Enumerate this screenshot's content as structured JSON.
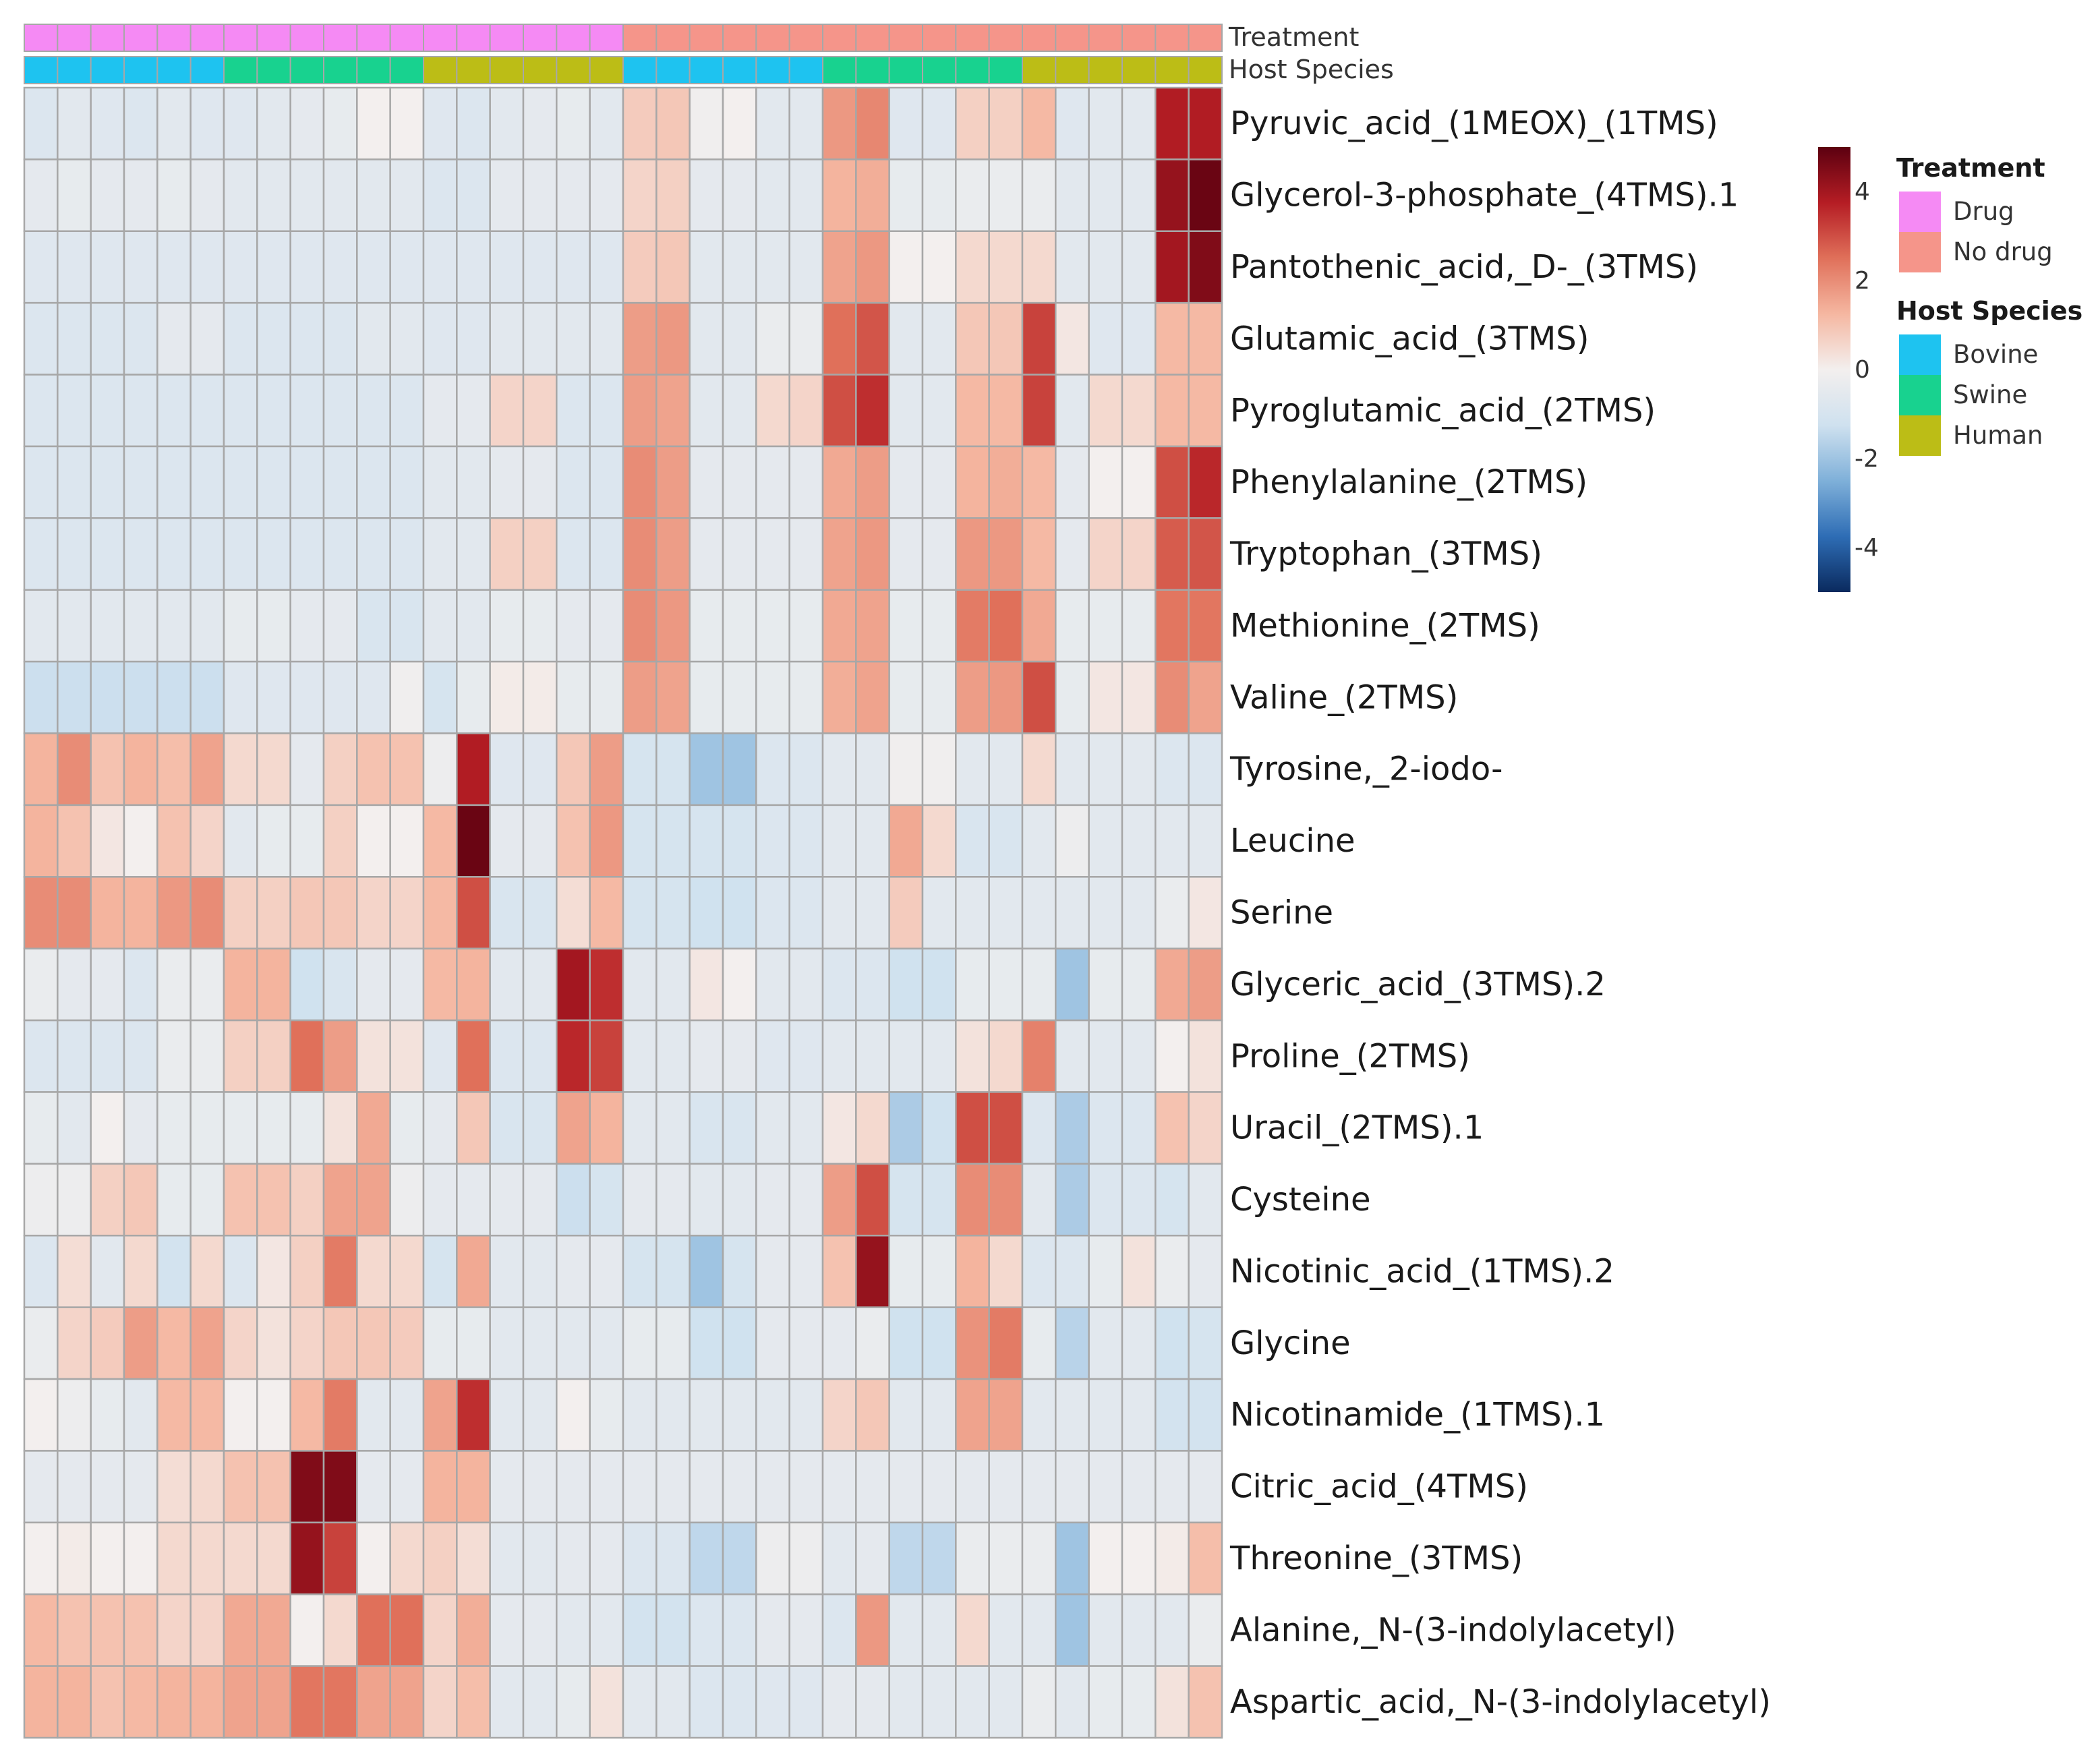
{
  "chart_data": {
    "type": "heatmap",
    "annotation_rows": [
      {
        "name": "Treatment",
        "values": [
          "Drug",
          "Drug",
          "Drug",
          "Drug",
          "Drug",
          "Drug",
          "Drug",
          "Drug",
          "Drug",
          "Drug",
          "Drug",
          "Drug",
          "Drug",
          "Drug",
          "Drug",
          "Drug",
          "Drug",
          "Drug",
          "No drug",
          "No drug",
          "No drug",
          "No drug",
          "No drug",
          "No drug",
          "No drug",
          "No drug",
          "No drug",
          "No drug",
          "No drug",
          "No drug",
          "No drug",
          "No drug",
          "No drug",
          "No drug",
          "No drug",
          "No drug"
        ]
      },
      {
        "name": "Host Species",
        "values": [
          "Bovine",
          "Bovine",
          "Bovine",
          "Bovine",
          "Bovine",
          "Bovine",
          "Swine",
          "Swine",
          "Swine",
          "Swine",
          "Swine",
          "Swine",
          "Human",
          "Human",
          "Human",
          "Human",
          "Human",
          "Human",
          "Bovine",
          "Bovine",
          "Bovine",
          "Bovine",
          "Bovine",
          "Bovine",
          "Swine",
          "Swine",
          "Swine",
          "Swine",
          "Swine",
          "Swine",
          "Human",
          "Human",
          "Human",
          "Human",
          "Human",
          "Human"
        ]
      }
    ],
    "rows": [
      "Pyruvic_acid_(1MEOX)_(1TMS)",
      "Glycerol-3-phosphate_(4TMS).1",
      "Pantothenic_acid,_D-_(3TMS)",
      "Glutamic_acid_(3TMS)",
      "Pyroglutamic_acid_(2TMS)",
      "Phenylalanine_(2TMS)",
      "Tryptophan_(3TMS)",
      "Methionine_(2TMS)",
      "Valine_(2TMS)",
      "Tyrosine,_2-iodo-",
      "Leucine",
      "Serine",
      "Glyceric_acid_(3TMS).2",
      "Proline_(2TMS)",
      "Uracil_(2TMS).1",
      "Cysteine",
      "Nicotinic_acid_(1TMS).2",
      "Glycine",
      "Nicotinamide_(1TMS).1",
      "Citric_acid_(4TMS)",
      "Threonine_(3TMS)",
      "Alanine,_N-(3-indolylacetyl)",
      "Aspartic_acid,_N-(3-indolylacetyl)"
    ],
    "values": [
      [
        -0.8,
        -0.6,
        -0.7,
        -0.8,
        -0.6,
        -0.7,
        -0.7,
        -0.6,
        -0.5,
        -0.4,
        0,
        0,
        -0.7,
        -0.8,
        -0.6,
        -0.5,
        -0.4,
        -0.6,
        0.8,
        0.9,
        -0.1,
        0,
        -0.6,
        -0.6,
        1.8,
        2.1,
        -0.7,
        -0.7,
        0.7,
        0.7,
        1.2,
        -0.7,
        -0.6,
        -0.6,
        3.8,
        3.8
      ],
      [
        -0.5,
        -0.4,
        -0.5,
        -0.5,
        -0.4,
        -0.5,
        -0.6,
        -0.6,
        -0.6,
        -0.6,
        -0.6,
        -0.6,
        -0.8,
        -0.8,
        -0.5,
        -0.5,
        -0.5,
        -0.5,
        0.6,
        0.7,
        -0.5,
        -0.5,
        -0.6,
        -0.6,
        1.3,
        1.4,
        -0.4,
        -0.4,
        -0.3,
        -0.3,
        -0.3,
        -0.6,
        -0.6,
        -0.6,
        4.2,
        4.8
      ],
      [
        -0.7,
        -0.7,
        -0.7,
        -0.7,
        -0.7,
        -0.7,
        -0.7,
        -0.7,
        -0.7,
        -0.7,
        -0.7,
        -0.7,
        -0.7,
        -0.7,
        -0.7,
        -0.7,
        -0.7,
        -0.7,
        0.8,
        0.9,
        -0.6,
        -0.6,
        -0.6,
        -0.6,
        1.6,
        1.8,
        0,
        0,
        0.5,
        0.5,
        0.5,
        -0.6,
        -0.6,
        -0.6,
        4,
        4.5
      ],
      [
        -0.8,
        -0.8,
        -0.8,
        -0.8,
        -0.5,
        -0.5,
        -0.8,
        -0.8,
        -0.8,
        -0.8,
        -0.6,
        -0.6,
        -0.7,
        -0.7,
        -0.6,
        -0.6,
        -0.6,
        -0.6,
        1.7,
        1.8,
        -0.6,
        -0.6,
        -0.3,
        -0.3,
        2.5,
        2.9,
        -0.6,
        -0.6,
        0.9,
        0.9,
        3.2,
        0.2,
        -0.7,
        -0.7,
        1.2,
        1.2
      ],
      [
        -0.8,
        -0.8,
        -0.8,
        -0.8,
        -0.8,
        -0.8,
        -0.8,
        -0.8,
        -0.8,
        -0.8,
        -0.8,
        -0.8,
        -0.5,
        -0.5,
        0.6,
        0.6,
        -0.8,
        -0.8,
        1.7,
        1.6,
        -0.6,
        -0.6,
        0.5,
        0.6,
        3,
        3.5,
        -0.6,
        -0.6,
        1.2,
        1.2,
        3.2,
        -0.6,
        0.5,
        0.5,
        1.2,
        1.2
      ],
      [
        -0.8,
        -0.8,
        -0.8,
        -0.8,
        -0.8,
        -0.8,
        -0.8,
        -0.8,
        -0.8,
        -0.8,
        -0.8,
        -0.8,
        -0.6,
        -0.6,
        -0.5,
        -0.5,
        -0.8,
        -0.8,
        2,
        1.7,
        -0.5,
        -0.5,
        -0.5,
        -0.5,
        1.5,
        1.7,
        -0.5,
        -0.5,
        1.3,
        1.4,
        1.2,
        -0.5,
        0,
        0,
        3,
        3.6
      ],
      [
        -0.8,
        -0.8,
        -0.8,
        -0.8,
        -0.8,
        -0.8,
        -0.8,
        -0.8,
        -0.8,
        -0.8,
        -0.8,
        -0.8,
        -0.6,
        -0.6,
        0.7,
        0.7,
        -0.8,
        -0.8,
        2,
        1.7,
        -0.5,
        -0.5,
        -0.5,
        -0.5,
        1.6,
        1.8,
        -0.5,
        -0.5,
        1.8,
        1.8,
        1.2,
        -0.5,
        0.6,
        0.6,
        2.8,
        2.9
      ],
      [
        -0.6,
        -0.6,
        -0.6,
        -0.6,
        -0.6,
        -0.6,
        -0.4,
        -0.4,
        -0.5,
        -0.5,
        -0.9,
        -0.9,
        -0.6,
        -0.6,
        -0.4,
        -0.4,
        -0.5,
        -0.5,
        2,
        1.8,
        -0.4,
        -0.4,
        -0.4,
        -0.4,
        1.5,
        1.6,
        -0.4,
        -0.4,
        2.3,
        2.5,
        1.5,
        -0.4,
        -0.4,
        -0.4,
        2.4,
        2.4
      ],
      [
        -1.3,
        -1.3,
        -1.3,
        -1.3,
        -1.3,
        -1.3,
        -0.7,
        -0.7,
        -0.7,
        -0.7,
        -0.7,
        -0.1,
        -1,
        -0.4,
        0.1,
        0.1,
        -0.4,
        -0.4,
        1.7,
        1.6,
        -0.4,
        -0.4,
        -0.4,
        -0.4,
        1.4,
        1.6,
        -0.4,
        -0.4,
        1.7,
        1.8,
        3,
        -0.4,
        0.2,
        0.2,
        2,
        1.6
      ],
      [
        1.3,
        2,
        1,
        1.3,
        1.1,
        1.6,
        0.5,
        0.5,
        -0.5,
        0.7,
        1,
        1,
        -0.2,
        3.8,
        -0.7,
        -0.7,
        0.9,
        1.7,
        -1,
        -1,
        -2,
        -2,
        -0.8,
        -0.8,
        -0.6,
        -0.6,
        -0.1,
        -0.1,
        -0.6,
        -0.6,
        0.5,
        -0.6,
        -0.6,
        -0.6,
        -0.8,
        -0.8
      ],
      [
        1.3,
        1,
        0.2,
        0,
        1,
        0.6,
        -0.6,
        -0.4,
        -0.4,
        0.7,
        0,
        0,
        1.2,
        4.8,
        -0.5,
        -0.5,
        1,
        1.8,
        -1,
        -1,
        -1,
        -1,
        -0.8,
        -0.8,
        -0.6,
        -0.6,
        1.5,
        0.5,
        -0.9,
        -0.9,
        -0.6,
        -0.2,
        -0.6,
        -0.6,
        -0.6,
        -0.6
      ],
      [
        2,
        2,
        1.3,
        1.3,
        1.8,
        2,
        0.7,
        0.7,
        0.9,
        0.9,
        0.6,
        0.6,
        1.2,
        3,
        -0.9,
        -0.9,
        0.4,
        1.2,
        -1,
        -1,
        -1.2,
        -1.2,
        -0.8,
        -0.8,
        -0.6,
        -0.6,
        0.8,
        -0.6,
        -0.6,
        -0.6,
        -0.6,
        -0.6,
        -0.6,
        -0.6,
        -0.3,
        0.2
      ],
      [
        -0.3,
        -0.5,
        -0.5,
        -0.8,
        -0.3,
        -0.3,
        1.3,
        1.3,
        -1.2,
        -0.9,
        -0.5,
        -0.5,
        1.2,
        1.3,
        -0.6,
        -0.6,
        4,
        3.5,
        -0.6,
        -0.6,
        0.2,
        0,
        -0.6,
        -0.6,
        -0.8,
        -0.8,
        -1.2,
        -1.2,
        -0.4,
        -0.4,
        -0.4,
        -2,
        -0.4,
        -0.4,
        1.5,
        1.7
      ],
      [
        -0.8,
        -0.8,
        -0.8,
        -0.8,
        -0.3,
        -0.3,
        0.7,
        0.7,
        2.5,
        1.7,
        0.3,
        0.3,
        -0.7,
        2.5,
        -0.8,
        -0.8,
        3.6,
        3.2,
        -0.6,
        -0.6,
        -0.5,
        -0.5,
        -0.7,
        -0.7,
        -0.6,
        -0.6,
        -0.6,
        -0.6,
        0.3,
        0.5,
        2.2,
        -0.6,
        -0.6,
        -0.6,
        0,
        0.3
      ],
      [
        -0.4,
        -0.6,
        0,
        -0.5,
        -0.4,
        -0.4,
        -0.4,
        -0.4,
        -0.4,
        0.3,
        1.5,
        -0.4,
        -0.5,
        0.9,
        -0.9,
        -0.9,
        1.6,
        1.3,
        -0.6,
        -0.6,
        -0.9,
        -0.9,
        -0.6,
        -0.6,
        0.2,
        0.5,
        -1.8,
        -1.2,
        3,
        3,
        -0.8,
        -1.8,
        -0.8,
        -0.8,
        1,
        0.6
      ],
      [
        -0.2,
        -0.2,
        0.7,
        0.9,
        -0.4,
        -0.4,
        1,
        1,
        0.7,
        1.6,
        1.6,
        -0.2,
        -0.5,
        -0.5,
        -0.5,
        -0.5,
        -1.3,
        -1,
        -0.5,
        -0.5,
        -0.6,
        -0.6,
        -0.5,
        -0.5,
        1.7,
        3,
        -1,
        -1,
        2,
        2,
        -0.6,
        -1.8,
        -0.8,
        -0.8,
        -1,
        -0.6
      ],
      [
        -0.8,
        0.4,
        -0.6,
        0.5,
        -1.1,
        0.5,
        -0.8,
        0.2,
        0.7,
        2.3,
        0.5,
        0.5,
        -1,
        1.5,
        -0.6,
        -0.6,
        -0.5,
        -0.5,
        -1,
        -1,
        -2,
        -1,
        -0.5,
        -0.5,
        1,
        4.2,
        -0.4,
        -0.4,
        1.3,
        0.5,
        -0.8,
        -0.8,
        -0.4,
        0.3,
        -0.3,
        -0.5
      ],
      [
        -0.3,
        0.6,
        0.8,
        1.7,
        1.2,
        1.6,
        0.6,
        0.3,
        0.6,
        0.9,
        0.9,
        0.8,
        -0.4,
        -0.4,
        -0.6,
        -0.6,
        -0.6,
        -0.6,
        -0.4,
        -0.4,
        -1.2,
        -1.2,
        -0.5,
        -0.5,
        -0.5,
        -0.3,
        -1.2,
        -1.2,
        1.9,
        2.3,
        -0.4,
        -1.6,
        -0.6,
        -0.6,
        -1.2,
        -1
      ],
      [
        0,
        -0.2,
        -0.4,
        -0.6,
        1.2,
        1.2,
        0,
        0,
        1.2,
        2.3,
        -0.6,
        -0.6,
        1.6,
        3.5,
        -0.6,
        -0.6,
        0,
        -0.4,
        -0.6,
        -0.6,
        -0.6,
        -0.6,
        -0.6,
        -0.6,
        0.6,
        0.9,
        -0.6,
        -0.6,
        1.6,
        1.6,
        -0.6,
        -0.6,
        -0.6,
        -0.6,
        -1.1,
        -1.1
      ],
      [
        -0.5,
        -0.5,
        -0.5,
        -0.5,
        0.4,
        0.5,
        1,
        1,
        4.5,
        4.5,
        -0.5,
        -0.5,
        1.3,
        1.3,
        -0.5,
        -0.5,
        -0.5,
        -0.5,
        -0.5,
        -0.5,
        -0.5,
        -0.5,
        -0.5,
        -0.5,
        -0.5,
        -0.5,
        -0.5,
        -0.5,
        -0.5,
        -0.5,
        -0.5,
        -0.5,
        -0.5,
        -0.5,
        -0.5,
        -0.5
      ],
      [
        0,
        0.1,
        0,
        0,
        0.5,
        0.5,
        0.5,
        0.5,
        4.2,
        3.2,
        0,
        0.5,
        0.7,
        0.4,
        -0.6,
        -0.6,
        -0.5,
        -0.5,
        -0.8,
        -0.8,
        -1.5,
        -1.5,
        -0.2,
        -0.2,
        -0.6,
        -0.5,
        -1.5,
        -1.5,
        -0.3,
        -0.3,
        -0.3,
        -2,
        0,
        0,
        0.1,
        1.1
      ],
      [
        1.2,
        1,
        1,
        1,
        0.6,
        0.6,
        1.5,
        1.5,
        0,
        0.5,
        2.5,
        2.5,
        0.6,
        1.4,
        -0.5,
        -0.5,
        -0.6,
        -0.6,
        -1.1,
        -1.1,
        -0.8,
        -0.8,
        -0.5,
        -0.5,
        -0.8,
        1.8,
        -0.6,
        -0.6,
        0.5,
        -0.6,
        -0.6,
        -2,
        -0.6,
        -0.6,
        -0.6,
        -0.3
      ],
      [
        1.3,
        1.3,
        1,
        1.2,
        1.3,
        1.3,
        1.6,
        1.6,
        2.4,
        2.4,
        1.6,
        1.6,
        0.6,
        1.1,
        -0.6,
        -0.6,
        -0.4,
        0.3,
        -0.6,
        -0.6,
        -0.8,
        -0.8,
        -0.7,
        -0.7,
        -0.5,
        -0.5,
        -0.6,
        -0.6,
        -0.6,
        -0.6,
        -0.3,
        -0.6,
        -0.4,
        -0.4,
        0.3,
        1
      ]
    ],
    "color_scale": {
      "min": -5,
      "max": 5,
      "ticks": [
        "4",
        "2",
        "0",
        "-2",
        "-4"
      ],
      "tick_values": [
        4,
        2,
        0,
        -2,
        -4
      ],
      "stops": [
        "#0a2a5e",
        "#2e6db5",
        "#7fb0d9",
        "#cfe1ef",
        "#f3efee",
        "#f5b7a1",
        "#e0705a",
        "#b51d24",
        "#5c0010"
      ]
    },
    "legend": {
      "groups": [
        {
          "title": "Treatment",
          "items": [
            {
              "label": "Drug",
              "color": "#f58af4"
            },
            {
              "label": "No drug",
              "color": "#f5958a"
            }
          ]
        },
        {
          "title": "Host Species",
          "items": [
            {
              "label": "Bovine",
              "color": "#1ec3f0"
            },
            {
              "label": "Swine",
              "color": "#18d28f"
            },
            {
              "label": "Human",
              "color": "#bcbd16"
            }
          ]
        }
      ]
    },
    "grid_color": "#a7a7a7"
  }
}
